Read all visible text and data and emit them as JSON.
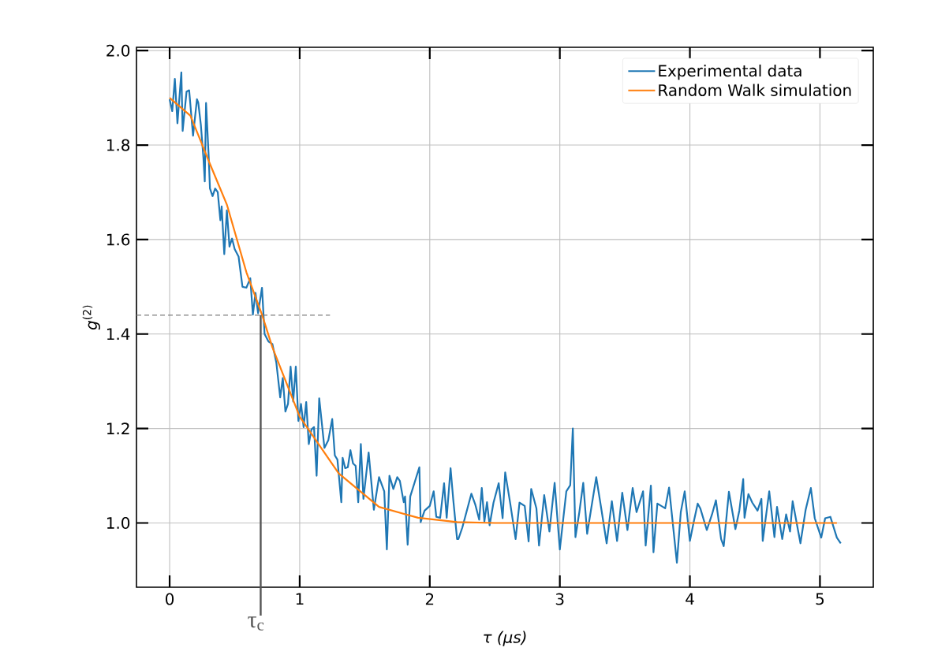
{
  "chart_data": {
    "type": "line",
    "xlabel": "τ (μs)",
    "ylabel": "*g*$^{(2)}$",
    "xlim": [
      -0.255,
      5.41
    ],
    "ylim": [
      0.864,
      2.007
    ],
    "xticks": [
      0,
      1,
      2,
      3,
      4,
      5
    ],
    "yticks": [
      {
        "value": 1,
        "label": "1.0"
      },
      {
        "value": 1.2,
        "label": "1.2"
      },
      {
        "value": 1.4,
        "label": "1.4"
      },
      {
        "value": 1.6,
        "label": "1.6"
      },
      {
        "value": 1.8,
        "label": "1.8"
      },
      {
        "value": 2,
        "label": "2.0"
      }
    ],
    "grid": true,
    "legend": "top right",
    "ref_lines": [
      {
        "axis": "y",
        "value": 1.44,
        "color": "#808080",
        "line_style": "dashed"
      },
      {
        "axis": "x",
        "value": 0.7,
        "label": "τ$_{c}$",
        "color": "#555555",
        "line_style": "solid"
      }
    ],
    "series": [
      {
        "name": "Experimental data",
        "color": "#1f77b4",
        "x": [
          0,
          0.02,
          0.04,
          0.06,
          0.09,
          0.1,
          0.13,
          0.15,
          0.18,
          0.21,
          0.22,
          0.24,
          0.26,
          0.27,
          0.28,
          0.3,
          0.31,
          0.33,
          0.35,
          0.37,
          0.39,
          0.4,
          0.42,
          0.44,
          0.46,
          0.48,
          0.5,
          0.53,
          0.56,
          0.59,
          0.62,
          0.64,
          0.66,
          0.68,
          0.71,
          0.73,
          0.76,
          0.79,
          0.82,
          0.85,
          0.87,
          0.89,
          0.91,
          0.93,
          0.95,
          0.97,
          0.99,
          1.01,
          1.03,
          1.05,
          1.07,
          1.09,
          1.11,
          1.13,
          1.15,
          1.19,
          1.22,
          1.25,
          1.27,
          1.29,
          1.32,
          1.33,
          1.35,
          1.37,
          1.39,
          1.41,
          1.43,
          1.45,
          1.47,
          1.49,
          1.53,
          1.57,
          1.61,
          1.65,
          1.67,
          1.69,
          1.72,
          1.75,
          1.77,
          1.8,
          1.81,
          1.83,
          1.85,
          1.92,
          1.93,
          1.96,
          2,
          2.03,
          2.05,
          2.08,
          2.11,
          2.13,
          2.16,
          2.18,
          2.21,
          2.22,
          2.25,
          2.32,
          2.35,
          2.38,
          2.4,
          2.42,
          2.44,
          2.46,
          2.49,
          2.53,
          2.56,
          2.58,
          2.62,
          2.66,
          2.69,
          2.73,
          2.76,
          2.78,
          2.82,
          2.84,
          2.88,
          2.92,
          2.96,
          3,
          3.05,
          3.08,
          3.1,
          3.12,
          3.15,
          3.18,
          3.21,
          3.28,
          3.32,
          3.36,
          3.4,
          3.44,
          3.48,
          3.52,
          3.56,
          3.59,
          3.64,
          3.66,
          3.7,
          3.72,
          3.75,
          3.81,
          3.84,
          3.9,
          3.93,
          3.96,
          4,
          4.03,
          4.06,
          4.08,
          4.13,
          4.17,
          4.2,
          4.24,
          4.26,
          4.3,
          4.35,
          4.38,
          4.41,
          4.42,
          4.45,
          4.48,
          4.52,
          4.55,
          4.56,
          4.61,
          4.65,
          4.67,
          4.71,
          4.74,
          4.77,
          4.79,
          4.85,
          4.89,
          4.93,
          4.96,
          5.01,
          5.04,
          5.08,
          5.13,
          5.16
        ],
        "values": [
          1.897,
          1.872,
          1.94,
          1.846,
          1.954,
          1.83,
          1.913,
          1.916,
          1.82,
          1.897,
          1.89,
          1.843,
          1.772,
          1.723,
          1.889,
          1.777,
          1.708,
          1.692,
          1.708,
          1.7,
          1.641,
          1.67,
          1.569,
          1.662,
          1.585,
          1.602,
          1.58,
          1.564,
          1.5,
          1.498,
          1.518,
          1.441,
          1.487,
          1.444,
          1.498,
          1.4,
          1.384,
          1.379,
          1.34,
          1.266,
          1.307,
          1.236,
          1.252,
          1.331,
          1.257,
          1.331,
          1.216,
          1.252,
          1.203,
          1.256,
          1.167,
          1.198,
          1.203,
          1.1,
          1.264,
          1.159,
          1.175,
          1.22,
          1.143,
          1.134,
          1.044,
          1.138,
          1.116,
          1.118,
          1.154,
          1.126,
          1.121,
          1.044,
          1.167,
          1.051,
          1.149,
          1.028,
          1.097,
          1.067,
          0.944,
          1.1,
          1.072,
          1.097,
          1.089,
          1.044,
          1.056,
          0.954,
          1.056,
          1.118,
          1.002,
          1.026,
          1.036,
          1.067,
          1.013,
          1.011,
          1.084,
          1.011,
          1.116,
          1.051,
          0.966,
          0.966,
          0.99,
          1.062,
          1.039,
          1.007,
          1.074,
          1.003,
          1.044,
          0.995,
          1.043,
          1.084,
          1.01,
          1.107,
          1.039,
          0.966,
          1.043,
          1.036,
          0.961,
          1.072,
          1.031,
          0.952,
          1.059,
          0.982,
          1.085,
          0.944,
          1.067,
          1.08,
          1.2,
          0.97,
          1.023,
          1.085,
          0.977,
          1.097,
          1.028,
          0.957,
          1.046,
          0.962,
          1.064,
          0.985,
          1.074,
          1.023,
          1.067,
          0.952,
          1.079,
          0.938,
          1.041,
          1.031,
          1.075,
          0.916,
          1.023,
          1.067,
          0.962,
          1.003,
          1.041,
          1.031,
          0.985,
          1.018,
          1.048,
          0.966,
          0.951,
          1.066,
          0.987,
          1.026,
          1.093,
          1.011,
          1.061,
          1.043,
          1.026,
          1.051,
          0.962,
          1.067,
          0.97,
          1.034,
          0.966,
          1.018,
          0.982,
          1.046,
          0.957,
          1.028,
          1.074,
          1.01,
          0.969,
          1.01,
          1.013,
          0.969,
          0.957
        ]
      },
      {
        "name": "Random Walk simulation",
        "color": "#ff7f0e",
        "x": [
          0,
          0.16,
          0.31,
          0.44,
          0.59,
          0.71,
          0.79,
          1,
          1.3,
          1.61,
          1.91,
          2.21,
          2.5,
          5.13
        ],
        "values": [
          1.9,
          1.862,
          1.76,
          1.674,
          1.531,
          1.441,
          1.372,
          1.225,
          1.105,
          1.034,
          1.011,
          1.002,
          1,
          1
        ]
      }
    ]
  }
}
